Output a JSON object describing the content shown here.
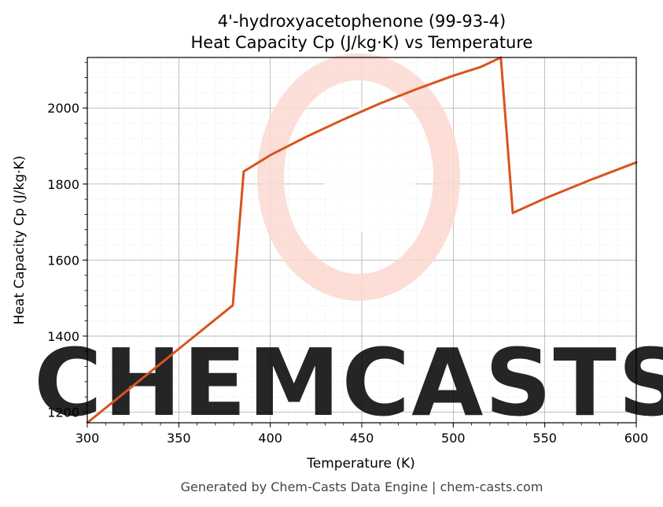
{
  "chart_data": {
    "type": "line",
    "title": "4'-hydroxyacetophenone (99-93-4)",
    "subtitle": "Heat Capacity Cp (J/kg·K) vs Temperature",
    "xlabel": "Temperature (K)",
    "ylabel": "Heat Capacity Cp (J/kg·K)",
    "xlim": [
      300,
      600
    ],
    "ylim": [
      1172,
      2133
    ],
    "xticks": [
      300,
      350,
      400,
      450,
      500,
      550,
      600
    ],
    "yticks": [
      1200,
      1400,
      1600,
      1800,
      2000
    ],
    "grid": true,
    "legend": "none",
    "series": [
      {
        "color": "#d9541e",
        "x": [
          300,
          379.5,
          385.5,
          400,
          420,
          440,
          460,
          480,
          500,
          515,
          526,
          532.5,
          550,
          575,
          600
        ],
        "y": [
          1172,
          1481,
          1833,
          1876,
          1925,
          1970,
          2012,
          2050,
          2085,
          2108,
          2133,
          1724,
          1762,
          1811,
          1857
        ]
      }
    ]
  },
  "watermark": {
    "text": "CHEMCASTS",
    "color": "#fcd9d1"
  },
  "footer": "Generated by Chem-Casts Data Engine | chem-casts.com"
}
